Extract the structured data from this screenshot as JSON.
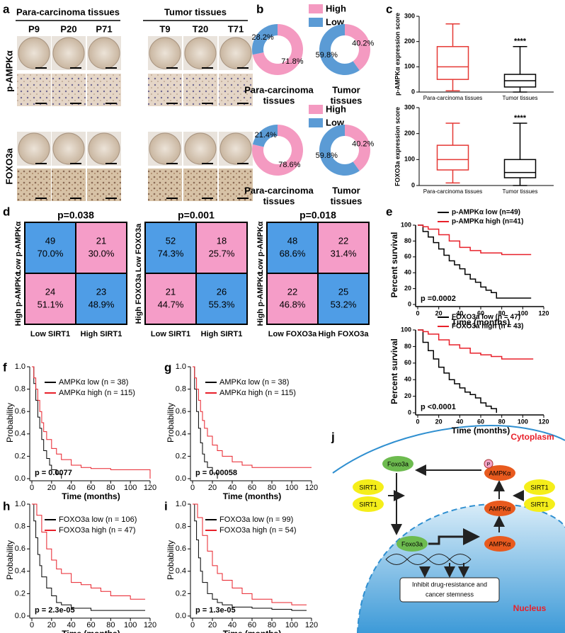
{
  "panel_labels": [
    "a",
    "b",
    "c",
    "d",
    "e",
    "f",
    "g",
    "h",
    "i",
    "j"
  ],
  "panel_a": {
    "groups": [
      "Para-carcinoma tissues",
      "Tumor tissues"
    ],
    "samples": [
      "P9",
      "P20",
      "P71",
      "T9",
      "T20",
      "T71"
    ],
    "stains": [
      "p-AMPKα",
      "FOXO3a"
    ]
  },
  "chart_data": [
    {
      "type": "pie",
      "title": [
        "Para-carcinoma",
        "tissues"
      ],
      "categories": [
        "High",
        "Low"
      ],
      "values": [
        71.8,
        28.2
      ],
      "value_labels": [
        "71.8%",
        "28.2%"
      ],
      "colors": [
        "#f49ac1",
        "#5b9bd5"
      ],
      "legend": true
    },
    {
      "type": "pie",
      "title": [
        "Tumor",
        "tissues"
      ],
      "categories": [
        "High",
        "Low"
      ],
      "values": [
        40.2,
        59.8
      ],
      "value_labels": [
        "40.2%",
        "59.8%"
      ],
      "colors": [
        "#f49ac1",
        "#5b9bd5"
      ],
      "legend": false
    },
    {
      "type": "pie",
      "title": [
        "Para-carcinoma",
        "tissues"
      ],
      "categories": [
        "High",
        "Low"
      ],
      "values": [
        78.6,
        21.4
      ],
      "value_labels": [
        "78.6%",
        "21.4%"
      ],
      "colors": [
        "#f49ac1",
        "#5b9bd5"
      ],
      "legend": true
    },
    {
      "type": "pie",
      "title": [
        "Tumor",
        "tissues"
      ],
      "categories": [
        "High",
        "Low"
      ],
      "values": [
        40.2,
        59.8
      ],
      "value_labels": [
        "40.2%",
        "59.8%"
      ],
      "colors": [
        "#f49ac1",
        "#5b9bd5"
      ],
      "legend": false
    },
    {
      "type": "box",
      "ylabel": "p-AMPKα expression score",
      "categories": [
        "Para-carcinoma tissues",
        "Tumor tissues"
      ],
      "ylim": [
        0,
        300
      ],
      "yticks": [
        0,
        100,
        200,
        300
      ],
      "annotation": "****",
      "boxes": [
        {
          "min": 5,
          "q1": 50,
          "median": 100,
          "q3": 180,
          "max": 270,
          "color": "#e53935"
        },
        {
          "min": 0,
          "q1": 20,
          "median": 45,
          "q3": 70,
          "max": 180,
          "color": "#000000"
        }
      ]
    },
    {
      "type": "box",
      "ylabel": "FOXO3a expression score",
      "categories": [
        "Para-carcinoma tissues",
        "Tumor tissues"
      ],
      "ylim": [
        0,
        300
      ],
      "yticks": [
        0,
        100,
        200,
        300
      ],
      "annotation": "****",
      "boxes": [
        {
          "min": 10,
          "q1": 60,
          "median": 100,
          "q3": 155,
          "max": 240,
          "color": "#e53935"
        },
        {
          "min": 0,
          "q1": 30,
          "median": 50,
          "q3": 100,
          "max": 240,
          "color": "#000000"
        }
      ]
    },
    {
      "type": "survival",
      "ylabel": "Percent survival",
      "xlabel": "Time (months)",
      "annotation": "p =0.0002",
      "xlim": [
        0,
        120
      ],
      "xticks": [
        0,
        20,
        40,
        60,
        80,
        100,
        120
      ],
      "ylim": [
        0,
        100
      ],
      "yticks": [
        0,
        20,
        40,
        60,
        80,
        100
      ],
      "series": [
        {
          "name": "p-AMPKα low (n=49)",
          "color": "#000000",
          "x": [
            0,
            5,
            10,
            15,
            20,
            25,
            30,
            35,
            40,
            45,
            50,
            55,
            60,
            65,
            70,
            75,
            108
          ],
          "values": [
            100,
            92,
            85,
            78,
            70,
            62,
            55,
            50,
            45,
            38,
            32,
            28,
            22,
            18,
            15,
            8,
            8
          ]
        },
        {
          "name": "p-AMPKα high (n=41)",
          "color": "#e8202a",
          "x": [
            0,
            5,
            10,
            20,
            30,
            40,
            50,
            60,
            70,
            80,
            108
          ],
          "values": [
            100,
            98,
            95,
            88,
            80,
            72,
            68,
            65,
            65,
            63,
            63
          ]
        }
      ]
    },
    {
      "type": "survival",
      "ylabel": "Percent survival",
      "xlabel": "Time (months)",
      "annotation": "p <0.0001",
      "xlim": [
        0,
        120
      ],
      "xticks": [
        0,
        20,
        40,
        60,
        80,
        100,
        120
      ],
      "ylim": [
        0,
        100
      ],
      "yticks": [
        0,
        20,
        40,
        60,
        80,
        100
      ],
      "series": [
        {
          "name": "FOXO3a low (n = 47)",
          "color": "#000000",
          "x": [
            0,
            5,
            10,
            15,
            20,
            25,
            30,
            35,
            40,
            45,
            50,
            55,
            60,
            65,
            70,
            75
          ],
          "values": [
            100,
            85,
            75,
            65,
            55,
            48,
            40,
            35,
            30,
            25,
            22,
            18,
            12,
            8,
            5,
            0
          ]
        },
        {
          "name": "FOXO3a high (n = 43)",
          "color": "#e8202a",
          "x": [
            0,
            5,
            10,
            20,
            30,
            40,
            50,
            60,
            70,
            80,
            110
          ],
          "values": [
            100,
            98,
            95,
            88,
            82,
            78,
            72,
            70,
            68,
            65,
            65
          ]
        }
      ]
    },
    {
      "type": "survival",
      "ylabel": "Probability",
      "xlabel": "Time (months)",
      "annotation": "p = 0.0077",
      "xlim": [
        0,
        120
      ],
      "xticks": [
        0,
        20,
        40,
        60,
        80,
        100,
        120
      ],
      "ylim": [
        0,
        1
      ],
      "yticks": [
        {
          "value": 0,
          "label": "0.0"
        },
        0.2,
        0.4,
        0.6,
        0.8,
        {
          "value": 1,
          "label": "1.0"
        }
      ],
      "series": [
        {
          "name": "AMPKα low (n = 38)",
          "color": "#000000",
          "x": [
            0,
            2,
            4,
            6,
            8,
            10,
            12,
            15,
            18,
            20,
            25,
            30
          ],
          "values": [
            1,
            0.85,
            0.7,
            0.55,
            0.45,
            0.35,
            0.25,
            0.18,
            0.12,
            0.08,
            0.04,
            0
          ]
        },
        {
          "name": "AMPKα high (n = 115)",
          "color": "#e8202a",
          "x": [
            0,
            2,
            4,
            6,
            8,
            10,
            12,
            15,
            20,
            25,
            30,
            40,
            50,
            60,
            70,
            80,
            100,
            120
          ],
          "values": [
            1,
            0.9,
            0.8,
            0.7,
            0.6,
            0.5,
            0.42,
            0.35,
            0.27,
            0.22,
            0.17,
            0.12,
            0.1,
            0.09,
            0.09,
            0.08,
            0.08,
            0
          ]
        }
      ]
    },
    {
      "type": "survival",
      "ylabel": "Probability",
      "xlabel": "Time (months)",
      "annotation": "p = 0.00058",
      "xlim": [
        0,
        120
      ],
      "xticks": [
        0,
        20,
        40,
        60,
        80,
        100,
        120
      ],
      "ylim": [
        0,
        1
      ],
      "yticks": [
        {
          "value": 0,
          "label": "0.0"
        },
        0.2,
        0.4,
        0.6,
        0.8,
        {
          "value": 1,
          "label": "1.0"
        }
      ],
      "series": [
        {
          "name": "AMPKα low (n = 38)",
          "color": "#000000",
          "x": [
            0,
            2,
            4,
            6,
            8,
            10,
            12,
            15,
            20,
            25
          ],
          "values": [
            1,
            0.8,
            0.6,
            0.45,
            0.32,
            0.22,
            0.15,
            0.1,
            0.05,
            0
          ]
        },
        {
          "name": "AMPKα high (n = 115)",
          "color": "#e8202a",
          "x": [
            0,
            2,
            4,
            6,
            8,
            10,
            12,
            15,
            20,
            25,
            30,
            40,
            50,
            60,
            80,
            100,
            120
          ],
          "values": [
            1,
            0.9,
            0.8,
            0.7,
            0.6,
            0.52,
            0.45,
            0.38,
            0.3,
            0.25,
            0.2,
            0.15,
            0.12,
            0.1,
            0.1,
            0.1,
            0.1
          ]
        }
      ]
    },
    {
      "type": "survival",
      "ylabel": "Probability",
      "xlabel": "Time (months)",
      "annotation": "p = 2.3e-05",
      "xlim": [
        0,
        120
      ],
      "xticks": [
        0,
        20,
        40,
        60,
        80,
        100,
        120
      ],
      "ylim": [
        0,
        1
      ],
      "yticks": [
        {
          "value": 0,
          "label": "0.0"
        },
        0.2,
        0.4,
        0.6,
        0.8,
        {
          "value": 1,
          "label": "1.0"
        }
      ],
      "series": [
        {
          "name": "FOXO3a low (n = 106)",
          "color": "#000000",
          "x": [
            0,
            2,
            4,
            6,
            8,
            10,
            15,
            20,
            25,
            30,
            40,
            60,
            80,
            100,
            115
          ],
          "values": [
            1,
            0.85,
            0.7,
            0.55,
            0.45,
            0.35,
            0.25,
            0.18,
            0.12,
            0.1,
            0.07,
            0.05,
            0.05,
            0.05,
            0.05
          ]
        },
        {
          "name": "FOXO3a high (n = 47)",
          "color": "#e8202a",
          "x": [
            0,
            5,
            10,
            15,
            20,
            25,
            30,
            40,
            50,
            60,
            70,
            80,
            100,
            115
          ],
          "values": [
            1,
            0.9,
            0.75,
            0.6,
            0.5,
            0.42,
            0.38,
            0.3,
            0.28,
            0.25,
            0.22,
            0.18,
            0.15,
            0.15
          ]
        }
      ]
    },
    {
      "type": "survival",
      "ylabel": "Probability",
      "xlabel": "Time (months)",
      "annotation": "p = 1.3e-05",
      "xlim": [
        0,
        120
      ],
      "xticks": [
        0,
        20,
        40,
        60,
        80,
        100,
        120
      ],
      "ylim": [
        0,
        1
      ],
      "yticks": [
        {
          "value": 0,
          "label": "0.0"
        },
        0.2,
        0.4,
        0.6,
        0.8,
        {
          "value": 1,
          "label": "1.0"
        }
      ],
      "series": [
        {
          "name": "FOXO3a low (n = 99)",
          "color": "#000000",
          "x": [
            0,
            2,
            4,
            6,
            8,
            10,
            15,
            20,
            25,
            30,
            40,
            60,
            80,
            100,
            115
          ],
          "values": [
            1,
            0.85,
            0.68,
            0.52,
            0.4,
            0.3,
            0.2,
            0.15,
            0.12,
            0.1,
            0.08,
            0.07,
            0.06,
            0.05,
            0.05
          ]
        },
        {
          "name": "FOXO3a high (n = 54)",
          "color": "#e8202a",
          "x": [
            0,
            5,
            10,
            15,
            20,
            25,
            30,
            40,
            50,
            60,
            80,
            100,
            115
          ],
          "values": [
            1,
            0.88,
            0.72,
            0.58,
            0.45,
            0.38,
            0.32,
            0.25,
            0.2,
            0.15,
            0.12,
            0.1,
            0.1
          ]
        }
      ]
    }
  ],
  "panel_d": {
    "tables": [
      {
        "title": "p=0.038",
        "row_labels": [
          "Low p-AMPKα",
          "High p-AMPKα"
        ],
        "col_labels": [
          "Low SIRT1",
          "High SIRT1"
        ],
        "cells": [
          [
            {
              "n": 49,
              "pct": "70.0%"
            },
            {
              "n": 21,
              "pct": "30.0%"
            }
          ],
          [
            {
              "n": 24,
              "pct": "51.1%"
            },
            {
              "n": 23,
              "pct": "48.9%"
            }
          ]
        ],
        "cell_colors": [
          [
            "#4f9de6",
            "#f59dc8"
          ],
          [
            "#f59dc8",
            "#4f9de6"
          ]
        ]
      },
      {
        "title": "p=0.001",
        "row_labels": [
          "Low FOXO3a",
          "High FOXO3a"
        ],
        "col_labels": [
          "Low SIRT1",
          "High SIRT1"
        ],
        "cells": [
          [
            {
              "n": 52,
              "pct": "74.3%"
            },
            {
              "n": 18,
              "pct": "25.7%"
            }
          ],
          [
            {
              "n": 21,
              "pct": "44.7%"
            },
            {
              "n": 26,
              "pct": "55.3%"
            }
          ]
        ],
        "cell_colors": [
          [
            "#4f9de6",
            "#f59dc8"
          ],
          [
            "#f59dc8",
            "#4f9de6"
          ]
        ]
      },
      {
        "title": "p=0.018",
        "row_labels": [
          "Low p-AMPKα",
          "High p-AMPKα"
        ],
        "col_labels": [
          "Low FOXO3a",
          "High FOXO3a"
        ],
        "cells": [
          [
            {
              "n": 48,
              "pct": "68.6%"
            },
            {
              "n": 22,
              "pct": "31.4%"
            }
          ],
          [
            {
              "n": 22,
              "pct": "46.8%"
            },
            {
              "n": 25,
              "pct": "53.2%"
            }
          ]
        ],
        "cell_colors": [
          [
            "#4f9de6",
            "#f59dc8"
          ],
          [
            "#f59dc8",
            "#4f9de6"
          ]
        ]
      }
    ]
  },
  "panel_j": {
    "cytoplasm": "Cytoplasm",
    "nucleus": "Nucleus",
    "foxo3a": [
      "Foxo3a",
      "Foxo3a"
    ],
    "ampk": [
      "AMPKα",
      "AMPKα",
      "AMPKα"
    ],
    "sirt1": [
      "SIRT1",
      "SIRT1",
      "SIRT1",
      "SIRT1"
    ],
    "phospho": "P",
    "outcome": [
      "Inhibit drug-resistance and",
      "cancer stemness"
    ]
  }
}
